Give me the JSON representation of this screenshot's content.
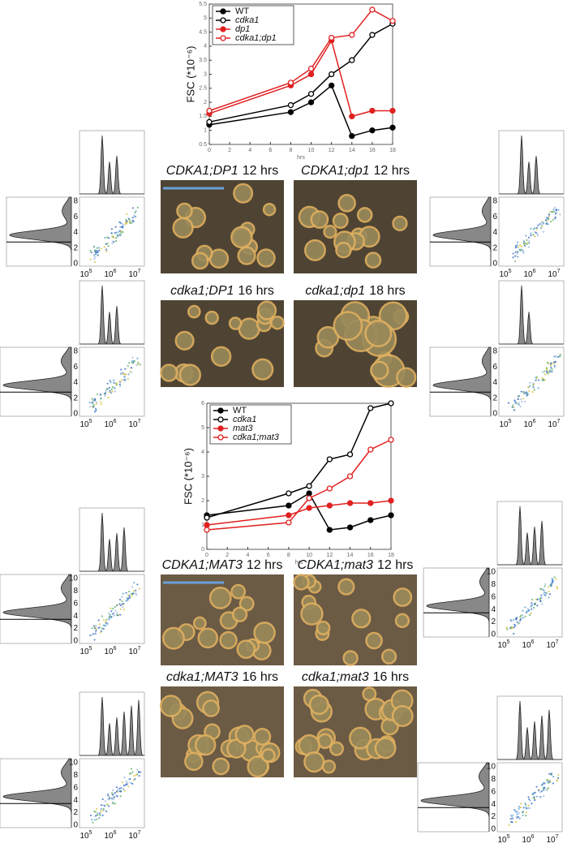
{
  "chart_data": [
    {
      "type": "line",
      "ylabel": "FSC (*10⁻⁶)",
      "xlabel": "hrs",
      "x": [
        0,
        8,
        10,
        12,
        14,
        16,
        18
      ],
      "xlim": [
        0,
        18
      ],
      "xticks": [
        0,
        2,
        4,
        6,
        8,
        10,
        12,
        14,
        16,
        18
      ],
      "ylim": [
        0.5,
        5.5
      ],
      "yticks": [
        0.5,
        1,
        1.5,
        2,
        2.5,
        3,
        3.5,
        4,
        4.5,
        5,
        5.5
      ],
      "legend": "upper left",
      "series": [
        {
          "name": "WT",
          "color": "#000000",
          "filled": true,
          "values": [
            1.2,
            1.65,
            2.0,
            2.6,
            0.8,
            1.0,
            1.1
          ]
        },
        {
          "name": "cdka1",
          "color": "#000000",
          "filled": false,
          "values": [
            1.3,
            1.9,
            2.3,
            3.0,
            3.5,
            4.4,
            4.8
          ]
        },
        {
          "name": "dp1",
          "color": "#e02020",
          "filled": true,
          "values": [
            1.6,
            2.6,
            3.0,
            4.2,
            1.5,
            1.7,
            1.7
          ]
        },
        {
          "name": "cdka1;dp1",
          "color": "#e02020",
          "filled": false,
          "values": [
            1.7,
            2.7,
            3.2,
            4.3,
            4.4,
            5.3,
            4.9
          ]
        }
      ]
    },
    {
      "type": "line",
      "ylabel": "FSC (*10⁻⁶)",
      "xlabel": "hrs",
      "x": [
        0,
        8,
        10,
        12,
        14,
        16,
        18
      ],
      "xlim": [
        0,
        18
      ],
      "xticks": [
        0,
        2,
        4,
        6,
        8,
        10,
        12,
        14,
        16,
        18
      ],
      "ylim": [
        0,
        6
      ],
      "yticks": [
        0,
        1,
        2,
        3,
        4,
        5,
        6
      ],
      "legend": "upper left",
      "series": [
        {
          "name": "WT",
          "color": "#000000",
          "filled": true,
          "values": [
            1.4,
            1.8,
            2.3,
            0.8,
            0.9,
            1.2,
            1.4
          ]
        },
        {
          "name": "cdka1",
          "color": "#000000",
          "filled": false,
          "values": [
            1.3,
            2.3,
            2.6,
            3.7,
            3.9,
            5.8,
            6.0
          ]
        },
        {
          "name": "mat3",
          "color": "#e02020",
          "filled": true,
          "values": [
            1.0,
            1.4,
            1.7,
            1.8,
            1.9,
            1.9,
            2.0
          ]
        },
        {
          "name": "cdka1;mat3",
          "color": "#e02020",
          "filled": false,
          "values": [
            0.8,
            1.1,
            2.1,
            2.5,
            3.0,
            4.1,
            4.5
          ]
        }
      ]
    }
  ],
  "micrographs": [
    {
      "genotype": "CDKA1;DP1",
      "time": "12 hrs"
    },
    {
      "genotype": "CDKA1;dp1",
      "time": "12 hrs"
    },
    {
      "genotype": "cdka1;DP1",
      "time": "16 hrs"
    },
    {
      "genotype": "cdka1;dp1",
      "time": "18 hrs"
    },
    {
      "genotype": "CDKA1;MAT3",
      "time": "12 hrs"
    },
    {
      "genotype": "CDKA1;mat3",
      "time": "12 hrs"
    },
    {
      "genotype": "cdka1;MAT3",
      "time": "16 hrs"
    },
    {
      "genotype": "cdka1;mat3",
      "time": "16 hrs"
    }
  ],
  "flow": {
    "x_ticks": [
      {
        "base": "10",
        "exp": "5"
      },
      {
        "base": "10",
        "exp": "6"
      },
      {
        "base": "10",
        "exp": "7"
      }
    ],
    "y_ticks_short": [
      0,
      2,
      4,
      6,
      8
    ],
    "y_ticks_long": [
      0,
      2,
      4,
      6,
      8,
      10
    ]
  }
}
